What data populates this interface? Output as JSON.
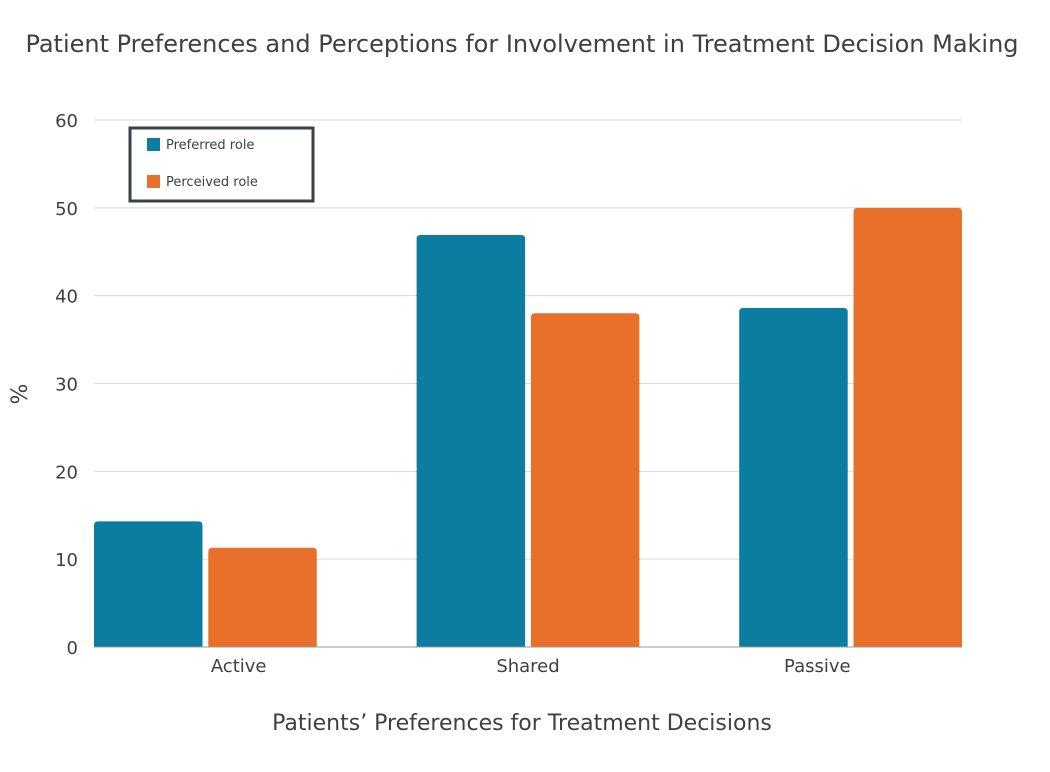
{
  "chart_data": {
    "type": "bar",
    "title": "Patient Preferences and Perceptions for Involvement in Treatment Decision Making",
    "xlabel": "Patients’ Preferences for Treatment Decisions",
    "ylabel": "%",
    "categories": [
      "Active",
      "Shared",
      "Passive"
    ],
    "series": [
      {
        "name": "Preferred role",
        "color": "#0a7da0",
        "values": [
          14.3,
          46.9,
          38.6
        ]
      },
      {
        "name": "Perceived role",
        "color": "#e8702a",
        "values": [
          11.3,
          38.0,
          50.0
        ]
      }
    ],
    "ylim": [
      0,
      60
    ],
    "yticks": [
      0,
      10,
      20,
      30,
      40,
      50,
      60
    ],
    "grid": true,
    "legend_position": "top-left"
  }
}
